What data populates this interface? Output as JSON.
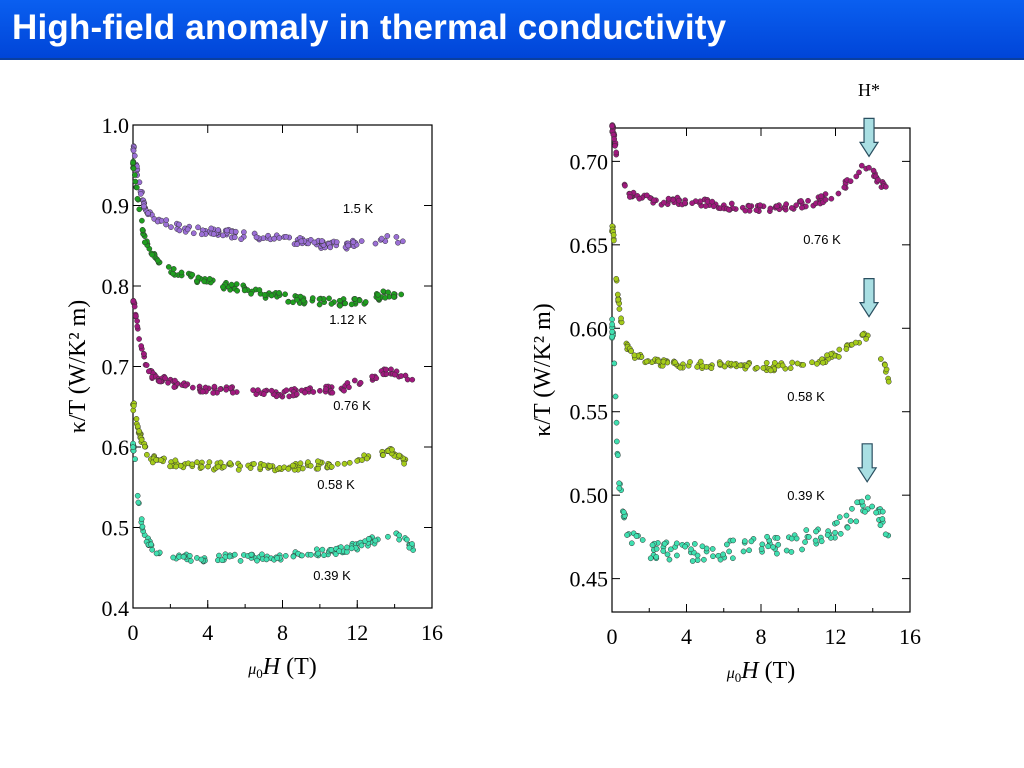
{
  "slide": {
    "title": "High-field anomaly in thermal conductivity",
    "accent": "#0050e0"
  },
  "chart_data": [
    {
      "type": "scatter",
      "xlabel_prefix": "μ",
      "xlabel_sub": "0",
      "xlabel_var": "H",
      "xlabel_unit": "(T)",
      "ylabel": "κ/T (W/K² m)",
      "xlim": [
        0,
        16
      ],
      "ylim": [
        0.4,
        1.0
      ],
      "xticks": [
        "0",
        "4",
        "8",
        "12",
        "16"
      ],
      "yticks": [
        "0.4",
        "0.5",
        "0.6",
        "0.7",
        "0.8",
        "0.9",
        "1.0"
      ],
      "series": [
        {
          "name": "1.5 K",
          "color": "#9b6fd6",
          "x": [
            0.05,
            0.3,
            0.6,
            1,
            2,
            3,
            4,
            5,
            6,
            7,
            8,
            9,
            10,
            11,
            12,
            13,
            14,
            14.5
          ],
          "y": [
            0.97,
            0.93,
            0.9,
            0.885,
            0.875,
            0.87,
            0.868,
            0.866,
            0.862,
            0.86,
            0.858,
            0.855,
            0.852,
            0.85,
            0.852,
            0.855,
            0.86,
            0.855
          ]
        },
        {
          "name": "1.12 K",
          "color": "#1f9e1f",
          "x": [
            0.05,
            0.3,
            0.6,
            1,
            2,
            3,
            4,
            5,
            6,
            7,
            8,
            9,
            10,
            11,
            12,
            13,
            13.5,
            14,
            14.5
          ],
          "y": [
            0.95,
            0.9,
            0.86,
            0.84,
            0.82,
            0.812,
            0.806,
            0.8,
            0.796,
            0.79,
            0.786,
            0.783,
            0.781,
            0.78,
            0.781,
            0.785,
            0.79,
            0.79,
            0.783
          ]
        },
        {
          "name": "0.76 K",
          "color": "#a0197e",
          "x": [
            0.05,
            0.3,
            0.6,
            1,
            2,
            3,
            4,
            5,
            6,
            7,
            8,
            9,
            10,
            11,
            12,
            13,
            13.5,
            14,
            14.5,
            15
          ],
          "y": [
            0.78,
            0.74,
            0.71,
            0.69,
            0.68,
            0.675,
            0.672,
            0.671,
            0.67,
            0.668,
            0.667,
            0.668,
            0.67,
            0.673,
            0.679,
            0.688,
            0.695,
            0.692,
            0.688,
            0.68
          ]
        },
        {
          "name": "0.58 K",
          "color": "#a5cc1a",
          "x": [
            0.05,
            0.3,
            0.6,
            1,
            2,
            3,
            4,
            5,
            6,
            7,
            8,
            9,
            10,
            11,
            12,
            13,
            13.5,
            14,
            14.5,
            15
          ],
          "y": [
            0.65,
            0.62,
            0.6,
            0.585,
            0.58,
            0.578,
            0.577,
            0.576,
            0.576,
            0.575,
            0.575,
            0.576,
            0.578,
            0.58,
            0.584,
            0.59,
            0.596,
            0.593,
            0.582,
            0.57
          ]
        },
        {
          "name": "0.39 K",
          "color": "#3fe0b0",
          "x": [
            0.05,
            0.3,
            0.6,
            1,
            2,
            3,
            4,
            5,
            6,
            7,
            8,
            9,
            10,
            11,
            12,
            13,
            13.5,
            14,
            14.5,
            15
          ],
          "y": [
            0.6,
            0.53,
            0.49,
            0.475,
            0.465,
            0.463,
            0.462,
            0.462,
            0.462,
            0.463,
            0.465,
            0.466,
            0.469,
            0.472,
            0.477,
            0.485,
            0.492,
            0.49,
            0.486,
            0.475
          ]
        }
      ]
    },
    {
      "type": "scatter",
      "xlabel_prefix": "μ",
      "xlabel_sub": "0",
      "xlabel_var": "H",
      "xlabel_unit": "(T)",
      "ylabel": "κ/T (W/K² m)",
      "xlim": [
        0,
        16
      ],
      "ylim": [
        0.43,
        0.72
      ],
      "xticks": [
        "0",
        "4",
        "8",
        "12",
        "16"
      ],
      "yticks": [
        "0.45",
        "0.50",
        "0.55",
        "0.60",
        "0.65",
        "0.70"
      ],
      "annotation": "H*",
      "arrows_at_x": [
        13.8,
        13.8,
        13.7
      ],
      "series": [
        {
          "name": "0.76 K",
          "color": "#a0197e",
          "x": [
            0.05,
            0.3,
            0.6,
            1,
            2,
            3,
            4,
            5,
            6,
            7,
            8,
            9,
            10,
            11,
            12,
            13,
            13.5,
            14,
            14.5,
            15
          ],
          "y": [
            0.72,
            0.7,
            0.688,
            0.68,
            0.677,
            0.676,
            0.676,
            0.675,
            0.674,
            0.671,
            0.672,
            0.673,
            0.674,
            0.676,
            0.681,
            0.69,
            0.697,
            0.693,
            0.686,
            0.68
          ]
        },
        {
          "name": "0.58 K",
          "color": "#a5cc1a",
          "x": [
            0.05,
            0.3,
            0.6,
            1,
            2,
            3,
            4,
            5,
            6,
            7,
            8,
            9,
            10,
            11,
            12,
            13,
            13.5,
            14,
            14.5,
            15
          ],
          "y": [
            0.66,
            0.62,
            0.595,
            0.585,
            0.58,
            0.579,
            0.578,
            0.578,
            0.578,
            0.577,
            0.577,
            0.577,
            0.578,
            0.58,
            0.584,
            0.59,
            0.596,
            0.594,
            0.582,
            0.565
          ]
        },
        {
          "name": "0.39 K",
          "color": "#3fe0b0",
          "x": [
            0.05,
            0.3,
            0.6,
            1,
            2,
            3,
            4,
            5,
            6,
            7,
            8,
            9,
            10,
            11,
            12,
            13,
            13.5,
            14,
            14.5,
            15
          ],
          "y": [
            0.6,
            0.52,
            0.485,
            0.475,
            0.468,
            0.466,
            0.465,
            0.466,
            0.467,
            0.468,
            0.469,
            0.47,
            0.472,
            0.475,
            0.48,
            0.488,
            0.495,
            0.492,
            0.485,
            0.478
          ]
        }
      ]
    }
  ]
}
